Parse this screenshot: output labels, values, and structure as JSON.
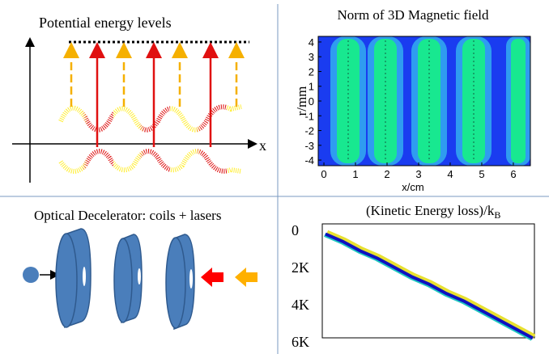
{
  "panels": {
    "potential": {
      "title": "Potential energy levels",
      "x_label": "x"
    },
    "field": {
      "title": "Norm of 3D Magnetic field",
      "x_label": "x/cm",
      "y_label": "r/mm",
      "xlim": [
        -0.18,
        6.54
      ],
      "ylim": [
        -4.38,
        4.38
      ],
      "xticks": [
        0,
        1,
        2,
        3,
        4,
        5,
        6
      ],
      "yticks": [
        4,
        3,
        2,
        1,
        0,
        -1,
        -2,
        -3,
        -4
      ]
    },
    "decelerator": {
      "title": "Optical Decelerator: coils + lasers"
    },
    "energy": {
      "title": "(Kinetic Energy loss)/k",
      "title_subscript": "B",
      "ylim": [
        0,
        6
      ],
      "yticks": [
        0,
        {
          "value": 2,
          "label": "2K"
        },
        {
          "value": 4,
          "label": "4K"
        },
        {
          "value": 6,
          "label": "6K"
        }
      ],
      "values": [
        0.2,
        0.6,
        1.1,
        1.5,
        2.0,
        2.5,
        2.9,
        3.4,
        3.8,
        4.3,
        4.8,
        5.3,
        5.8
      ]
    }
  }
}
